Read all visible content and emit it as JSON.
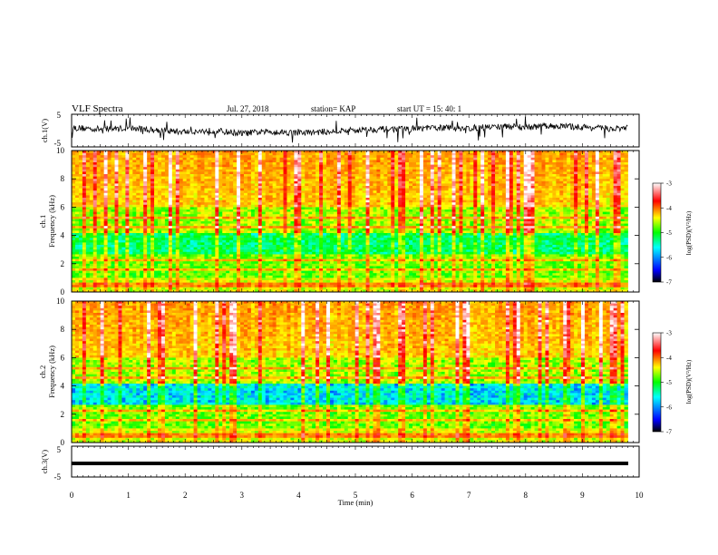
{
  "header": {
    "title": "VLF Spectra",
    "date": "Jul. 27, 2018",
    "station": "station= KAP",
    "start": "start UT =  15: 40: 1"
  },
  "chart_data": [
    {
      "type": "line",
      "panel": "ch1-waveform",
      "ylabel": "ch.1(V)",
      "ylim": [
        -5,
        5
      ],
      "ytick_labels": [
        "5",
        "-5"
      ],
      "x": [
        0,
        0.5,
        1,
        1.5,
        2,
        2.5,
        3,
        3.5,
        4,
        4.5,
        5,
        5.5,
        6,
        6.5,
        7,
        7.5,
        8,
        8.5,
        9,
        9.5,
        9.8
      ],
      "values": [
        1,
        0.5,
        0.8,
        0.2,
        -0.5,
        0,
        -1,
        -0.3,
        -0.8,
        -0.4,
        0.2,
        0.5,
        0.6,
        1,
        0.8,
        1.4,
        1.2,
        1.6,
        1.2,
        0.6,
        0.8
      ],
      "grid": false
    },
    {
      "type": "heatmap",
      "panel": "ch1-spectrogram",
      "ylabel": "ch.1 Frequency (kHz)",
      "ylim": [
        0,
        10
      ],
      "ytick_labels": [
        "0",
        "2",
        "4",
        "6",
        "8",
        "10"
      ],
      "colorbar_label": "log(PSD)(V²/Hz)",
      "colorbar_range": [
        -7,
        -3
      ],
      "colorbar_ticks": [
        "-3",
        "-4",
        "-5",
        "-6",
        "-7"
      ],
      "grid": false
    },
    {
      "type": "heatmap",
      "panel": "ch2-spectrogram",
      "ylabel": "ch.2 Frequency (kHz)",
      "ylim": [
        0,
        10
      ],
      "ytick_labels": [
        "0",
        "2",
        "4",
        "6",
        "8",
        "10"
      ],
      "colorbar_label": "log(PSD)(V²/Hz)",
      "colorbar_range": [
        -7,
        -3
      ],
      "colorbar_ticks": [
        "-3",
        "-4",
        "-5",
        "-6",
        "-7"
      ],
      "grid": false
    },
    {
      "type": "line",
      "panel": "ch3-waveform",
      "ylabel": "ch.3(V)",
      "ylim": [
        -5,
        5
      ],
      "ytick_labels": [
        "5",
        "-5"
      ],
      "x": [
        0,
        9.8
      ],
      "values": [
        -1,
        -1
      ],
      "grid": false
    }
  ],
  "xaxis": {
    "label": "Time (min)",
    "xlim": [
      0,
      10
    ],
    "tick_labels": [
      "0",
      "1",
      "2",
      "3",
      "4",
      "5",
      "6",
      "7",
      "8",
      "9",
      "10"
    ]
  },
  "colors": {
    "line": "#000000",
    "colormap": [
      "#000066",
      "#0000ff",
      "#00ffff",
      "#00ff00",
      "#ffff00",
      "#ff8000",
      "#ff0000",
      "#ffffff"
    ]
  }
}
